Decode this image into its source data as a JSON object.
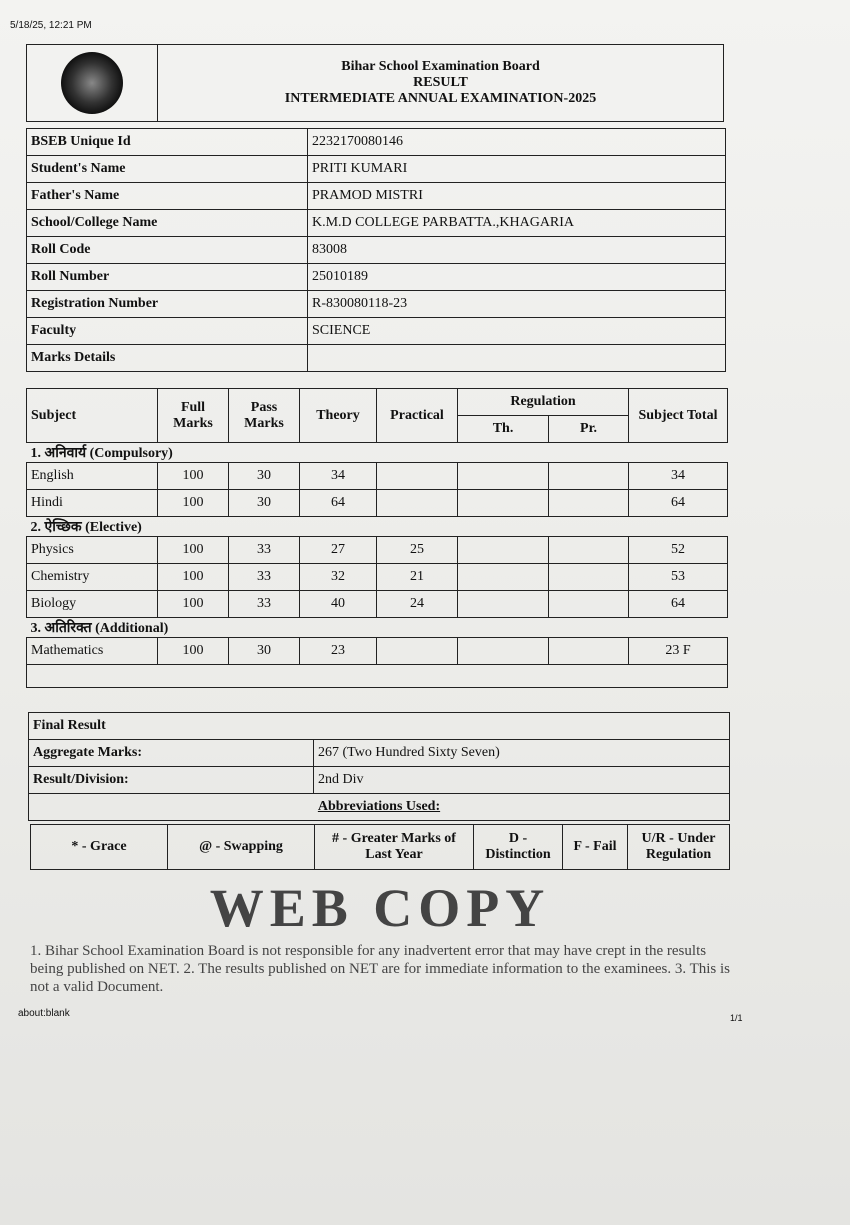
{
  "browser": {
    "timestamp": "5/18/25, 12:21 PM",
    "url": "about:blank",
    "page": "1/1"
  },
  "header": {
    "board": "Bihar School Examination Board",
    "doc": "RESULT",
    "exam": "INTERMEDIATE ANNUAL EXAMINATION-2025"
  },
  "info": [
    {
      "k": "BSEB Unique Id",
      "v": "2232170080146"
    },
    {
      "k": "Student's Name",
      "v": "PRITI KUMARI"
    },
    {
      "k": "Father's Name",
      "v": "PRAMOD MISTRI"
    },
    {
      "k": "School/College Name",
      "v": "K.M.D COLLEGE PARBATTA.,KHAGARIA"
    },
    {
      "k": "Roll Code",
      "v": "83008"
    },
    {
      "k": "Roll Number",
      "v": "25010189"
    },
    {
      "k": "Registration Number",
      "v": "R-830080118-23"
    },
    {
      "k": "Faculty",
      "v": "SCIENCE"
    },
    {
      "k": "Marks Details",
      "v": ""
    }
  ],
  "marks": {
    "cols": {
      "subject": "Subject",
      "full": "Full Marks",
      "pass": "Pass Marks",
      "theory": "Theory",
      "practical": "Practical",
      "regulation": "Regulation",
      "th": "Th.",
      "pr": "Pr.",
      "total": "Subject Total"
    },
    "sections": [
      {
        "title": "1. अनिवार्य (Compulsory)",
        "rows": [
          {
            "subject": "English",
            "full": "100",
            "pass": "30",
            "theory": "34",
            "practical": "",
            "th": "",
            "pr": "",
            "total": "34"
          },
          {
            "subject": "Hindi",
            "full": "100",
            "pass": "30",
            "theory": "64",
            "practical": "",
            "th": "",
            "pr": "",
            "total": "64"
          }
        ]
      },
      {
        "title": "2. ऐच्छिक (Elective)",
        "rows": [
          {
            "subject": "Physics",
            "full": "100",
            "pass": "33",
            "theory": "27",
            "practical": "25",
            "th": "",
            "pr": "",
            "total": "52"
          },
          {
            "subject": "Chemistry",
            "full": "100",
            "pass": "33",
            "theory": "32",
            "practical": "21",
            "th": "",
            "pr": "",
            "total": "53"
          },
          {
            "subject": "Biology",
            "full": "100",
            "pass": "33",
            "theory": "40",
            "practical": "24",
            "th": "",
            "pr": "",
            "total": "64"
          }
        ]
      },
      {
        "title": "3. अतिरिक्त (Additional)",
        "rows": [
          {
            "subject": "Mathematics",
            "full": "100",
            "pass": "30",
            "theory": "23",
            "practical": "",
            "th": "",
            "pr": "",
            "total": "23 F"
          }
        ]
      }
    ]
  },
  "result": {
    "title": "Final Result",
    "agg_label": "Aggregate Marks:",
    "agg_value": "267   (Two Hundred Sixty Seven)",
    "div_label": "Result/Division:",
    "div_value": "2nd Div",
    "abbr_title": "Abbreviations Used:"
  },
  "abbreviations": [
    "* - Grace",
    "@ - Swapping",
    "# - Greater Marks of Last Year",
    "D - Distinction",
    "F - Fail",
    "U/R - Under Regulation"
  ],
  "watermark": "WEB COPY",
  "disclaimer": "1. Bihar School Examination Board is not responsible for any inadvertent error that may have crept in the results being published on NET. 2. The results published on NET are for immediate information to the examinees. 3. This is not a valid Document."
}
